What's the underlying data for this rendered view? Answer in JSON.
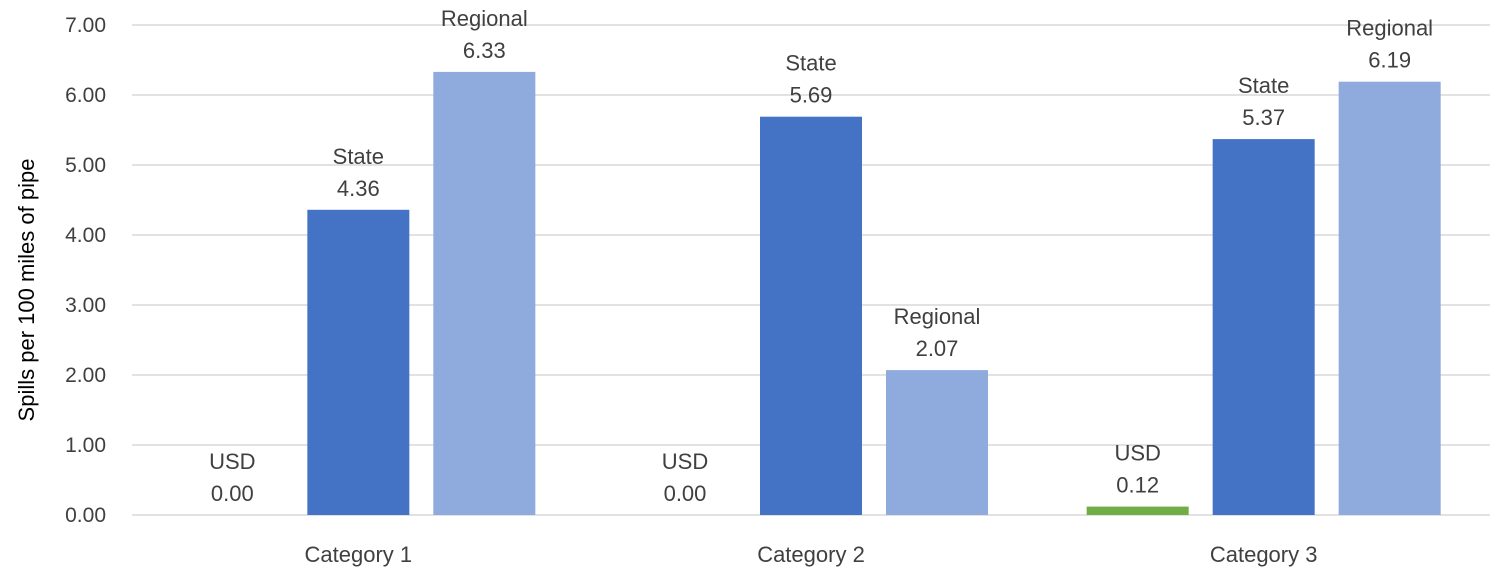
{
  "chart_data": {
    "type": "bar",
    "title": "",
    "xlabel": "",
    "ylabel": "Spills per 100 miles of pipe",
    "ylim": [
      0,
      7
    ],
    "yticks": [
      "0.00",
      "1.00",
      "2.00",
      "3.00",
      "4.00",
      "5.00",
      "6.00",
      "7.00"
    ],
    "grid": true,
    "legend": "none",
    "categories": [
      "Category 1",
      "Category 2",
      "Category 3"
    ],
    "series": [
      {
        "name": "USD",
        "color": "#70ad47",
        "values": [
          0.0,
          0.0,
          0.12
        ],
        "labels": [
          "0.00",
          "0.00",
          "0.12"
        ]
      },
      {
        "name": "State",
        "color": "#4472c4",
        "values": [
          4.36,
          5.69,
          5.37
        ],
        "labels": [
          "4.36",
          "5.69",
          "5.37"
        ]
      },
      {
        "name": "Regional",
        "color": "#8faadc",
        "values": [
          6.33,
          2.07,
          6.19
        ],
        "labels": [
          "6.33",
          "2.07",
          "6.19"
        ]
      }
    ]
  }
}
